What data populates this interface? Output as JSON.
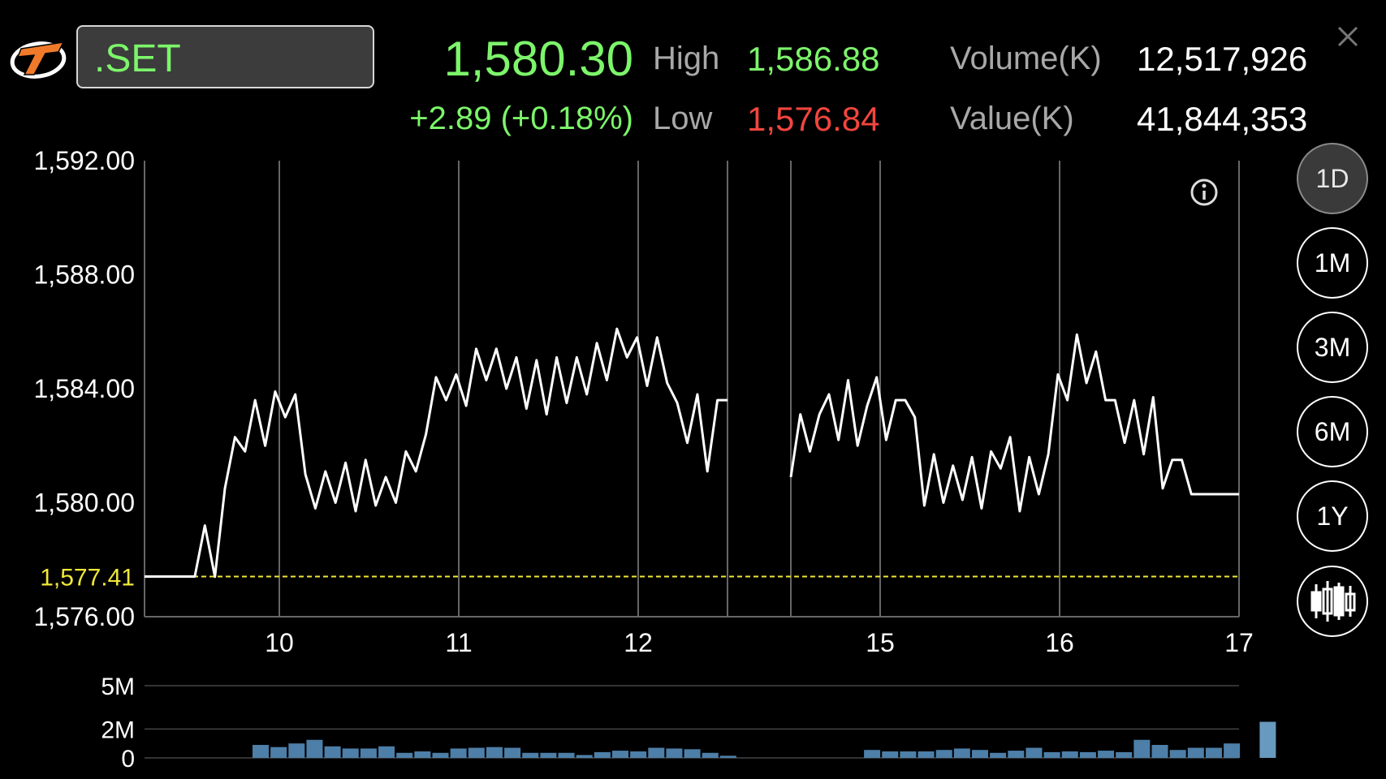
{
  "symbol": {
    "value": ".SET"
  },
  "quote": {
    "last": "1,580.30",
    "change": "+2.89 (+0.18%)",
    "high_label": "High",
    "high": "1,586.88",
    "low_label": "Low",
    "low": "1,576.84",
    "volume_label": "Volume(K)",
    "volume": "12,517,926",
    "value_label": "Value(K)",
    "value": "41,844,353"
  },
  "range_buttons": [
    "1D",
    "1M",
    "3M",
    "6M",
    "1Y"
  ],
  "active_range": "1D",
  "icons": {
    "logo": "brand-logo-icon",
    "close": "close-icon",
    "info": "info-icon",
    "candlestick": "candlestick-icon"
  },
  "colors": {
    "up": "#7cf56a",
    "down": "#f2453d",
    "line": "#ffffff",
    "prev_close": "#f0e838",
    "volume_bar": "#4d7fa8",
    "volume_bar_last": "#6899bf"
  },
  "chart_data": [
    {
      "type": "line",
      "y_ticks": [
        "1,592.00",
        "1,588.00",
        "1,584.00",
        "1,580.00",
        "1,576.00"
      ],
      "y_tick_values": [
        1592,
        1588,
        1584,
        1580,
        1576
      ],
      "ylim": [
        1576,
        1592
      ],
      "x_ticks": [
        "10",
        "11",
        "12",
        "15",
        "16",
        "17"
      ],
      "reference_line": {
        "label": "1,577.41",
        "value": 1577.41
      },
      "series": [
        {
          "values": [
            1577.41,
            1577.41,
            1577.41,
            1577.41,
            1577.41,
            1577.41,
            1579.2,
            1577.4,
            1580.5,
            1582.3,
            1581.8,
            1583.6,
            1582.0,
            1583.9,
            1583.0,
            1583.8,
            1581.0,
            1579.8,
            1581.1,
            1580.0,
            1581.4,
            1579.7,
            1581.5,
            1579.9,
            1580.9,
            1580.0,
            1581.8,
            1581.1,
            1582.4,
            1584.4,
            1583.6,
            1584.5,
            1583.4,
            1585.4,
            1584.3,
            1585.4,
            1584.0,
            1585.1,
            1583.3,
            1585.0,
            1583.1,
            1585.1,
            1583.5,
            1585.1,
            1583.8,
            1585.6,
            1584.3,
            1586.1,
            1585.1,
            1585.8,
            1584.1,
            1585.8,
            1584.2,
            1583.5,
            1582.1,
            1583.8,
            1581.1,
            1583.6,
            1583.6
          ],
          "gap_after": 58
        },
        {
          "values": [
            1580.9,
            1583.1,
            1581.8,
            1583.1,
            1583.8,
            1582.2,
            1584.3,
            1582.0,
            1583.4,
            1584.4,
            1582.2,
            1583.6,
            1583.6,
            1583.0,
            1579.9,
            1581.7,
            1580.0,
            1581.3,
            1580.1,
            1581.6,
            1579.8,
            1581.8,
            1581.2,
            1582.3,
            1579.7,
            1581.6,
            1580.3,
            1581.7,
            1584.5,
            1583.6,
            1585.9,
            1584.2,
            1585.3,
            1583.6,
            1583.6,
            1582.1,
            1583.6,
            1581.7,
            1583.7,
            1580.5,
            1581.5,
            1581.5,
            1580.3,
            1580.3,
            1580.3,
            1580.3,
            1580.3,
            1580.3
          ]
        }
      ]
    },
    {
      "type": "bar",
      "title": "",
      "y_ticks": [
        "5M",
        "2M",
        "0"
      ],
      "y_tick_values": [
        5,
        2,
        0
      ],
      "ylim": [
        0,
        5
      ],
      "unit": "M",
      "values": [
        0.9,
        0.75,
        1.0,
        1.25,
        0.8,
        0.65,
        0.65,
        0.8,
        0.35,
        0.45,
        0.35,
        0.65,
        0.7,
        0.75,
        0.7,
        0.35,
        0.35,
        0.35,
        0.2,
        0.4,
        0.5,
        0.45,
        0.7,
        0.65,
        0.6,
        0.35,
        0.15,
        0,
        0,
        0,
        0,
        0,
        0,
        0,
        0.55,
        0.45,
        0.45,
        0.45,
        0.55,
        0.65,
        0.55,
        0.35,
        0.5,
        0.7,
        0.4,
        0.45,
        0.4,
        0.5,
        0.4,
        1.25,
        0.9,
        0.55,
        0.7,
        0.7,
        1.0,
        0,
        2.5
      ],
      "volume_bar_last_index": 56
    }
  ]
}
